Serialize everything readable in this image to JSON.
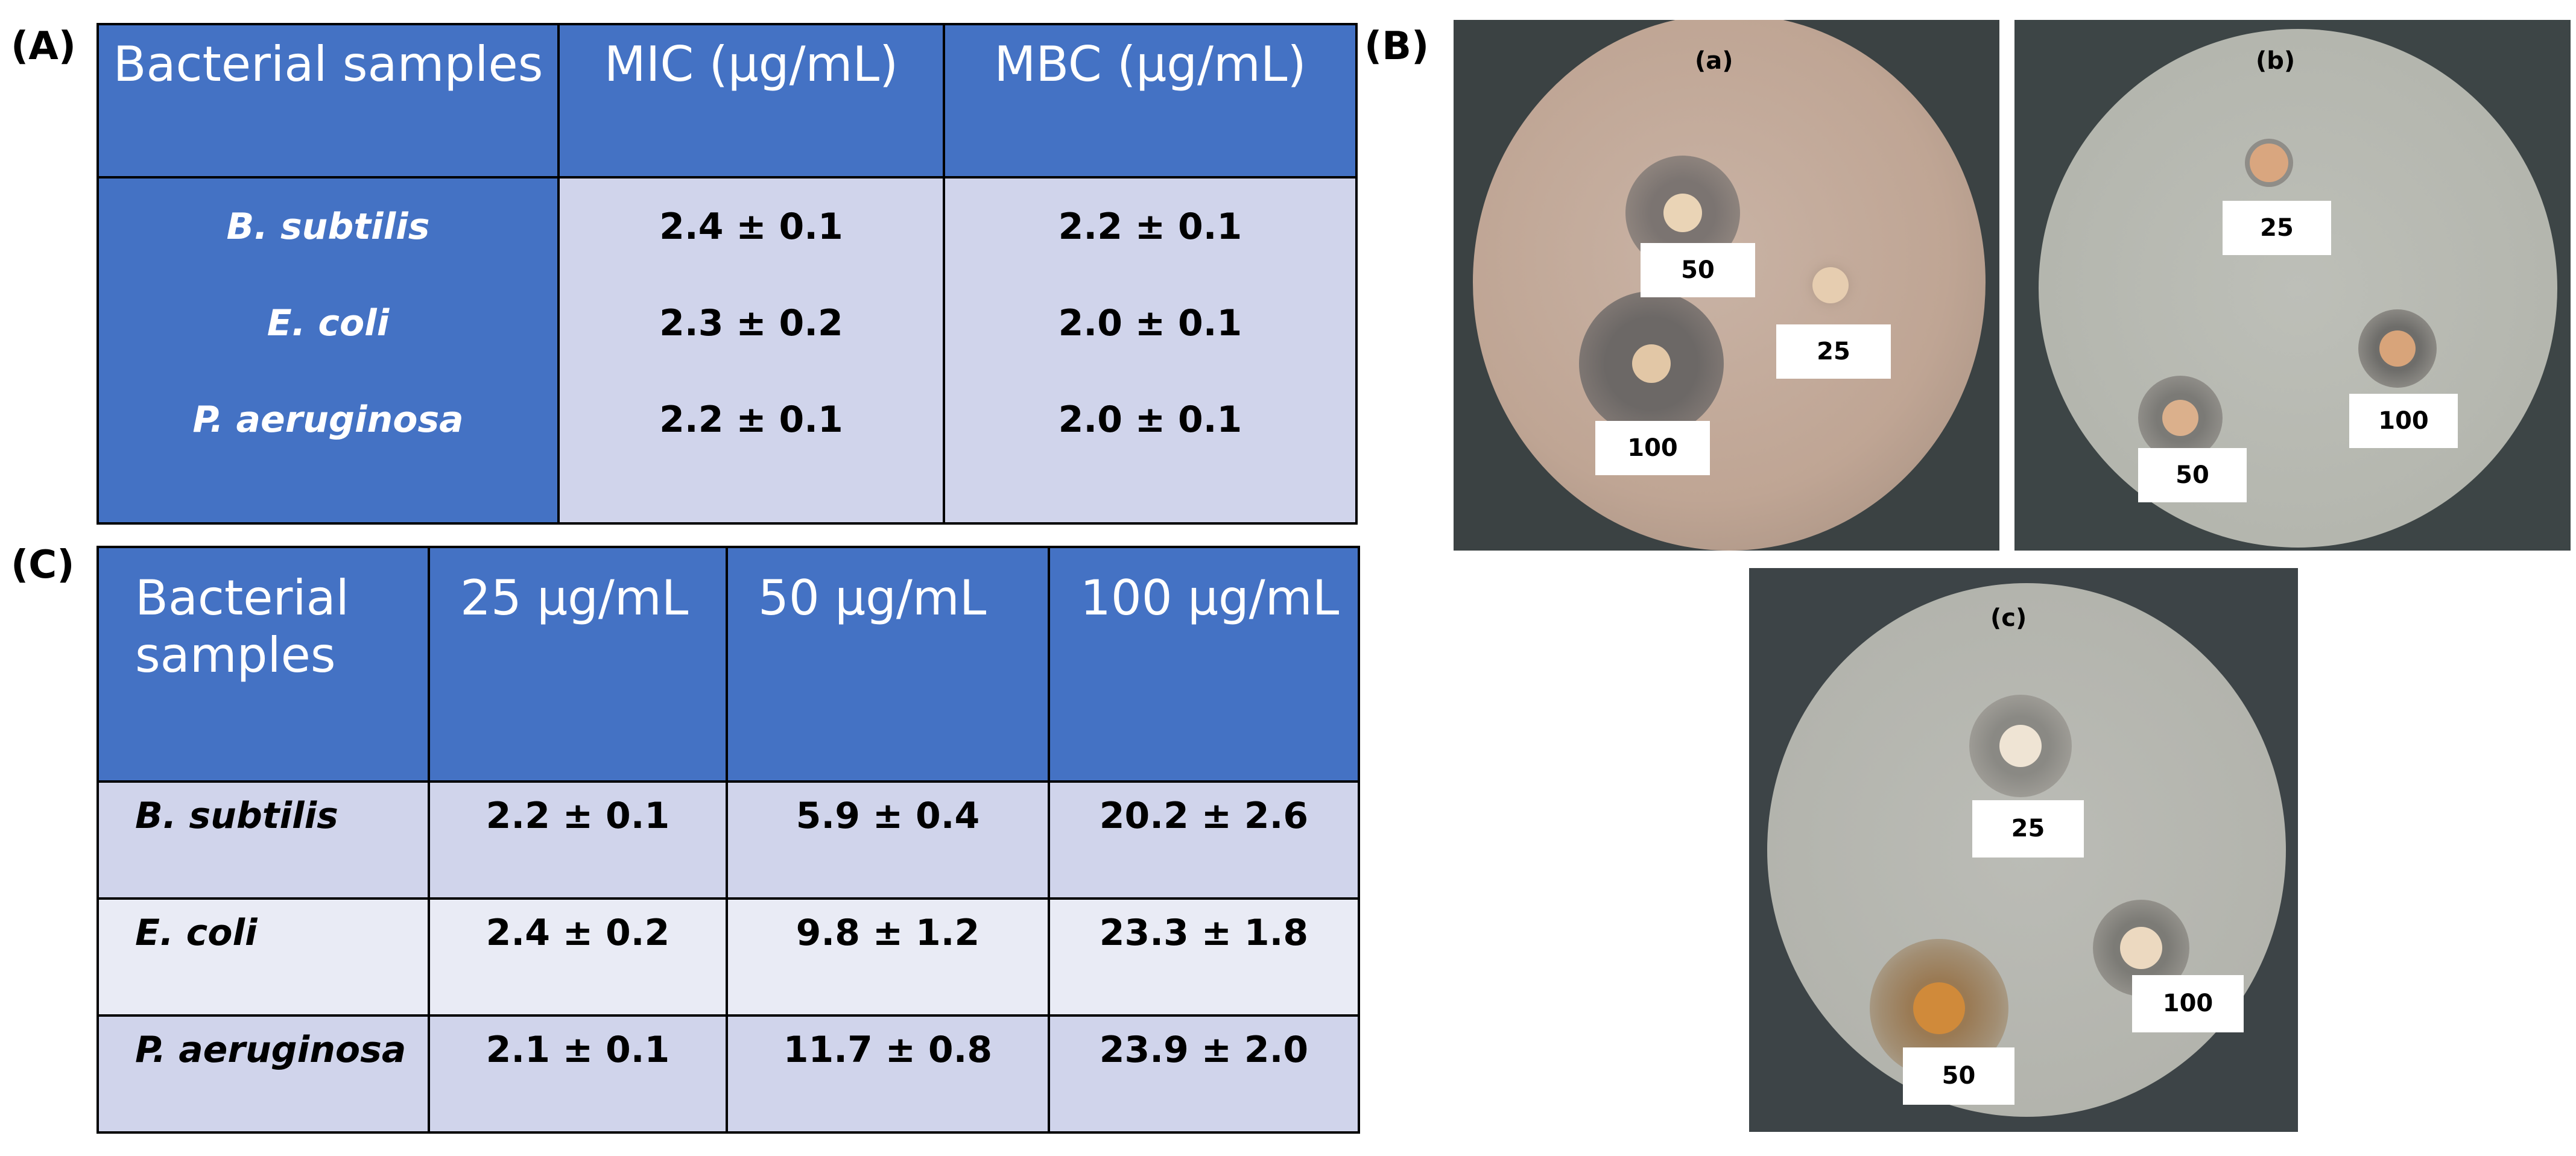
{
  "panels": {
    "a": "(A)",
    "b": "(B)",
    "c": "(C)"
  },
  "tableA": {
    "headers": [
      "Bacterial samples",
      "MIC (µg/mL)",
      "MBC (µg/mL)"
    ],
    "rows": [
      {
        "sample": "B. subtilis",
        "mic": "2.4 ± 0.1",
        "mbc": "2.2 ± 0.1"
      },
      {
        "sample": "E. coli",
        "mic": "2.3 ± 0.2",
        "mbc": "2.0 ± 0.1"
      },
      {
        "sample": "P. aeruginosa",
        "mic": "2.2 ± 0.1",
        "mbc": "2.0 ± 0.1"
      }
    ]
  },
  "tableC": {
    "headers": [
      "Bacterial samples",
      "25 µg/mL",
      "50 µg/mL",
      "100 µg/mL"
    ],
    "rows": [
      {
        "sample": "B. subtilis",
        "v25": "2.2 ± 0.1",
        "v50": "5.9 ± 0.4",
        "v100": "20.2 ± 2.6"
      },
      {
        "sample": "E. coli",
        "v25": "2.4 ± 0.2",
        "v50": "9.8 ± 1.2",
        "v100": "23.3 ± 1.8"
      },
      {
        "sample": "P. aeruginosa",
        "v25": "2.1 ± 0.1",
        "v50": "11.7 ± 0.8",
        "v100": "23.9 ± 2.0"
      }
    ]
  },
  "photos": {
    "a": {
      "label": "(a)",
      "tags": [
        "50",
        "25",
        "100"
      ]
    },
    "b": {
      "label": "(b)",
      "tags": [
        "25",
        "100",
        "50"
      ]
    },
    "c": {
      "label": "(c)",
      "tags": [
        "25",
        "100",
        "50"
      ]
    }
  },
  "colors": {
    "header_blue": "#4472c4",
    "row_light": "#d0d4eb",
    "row_lighter": "#e9ebf5"
  }
}
